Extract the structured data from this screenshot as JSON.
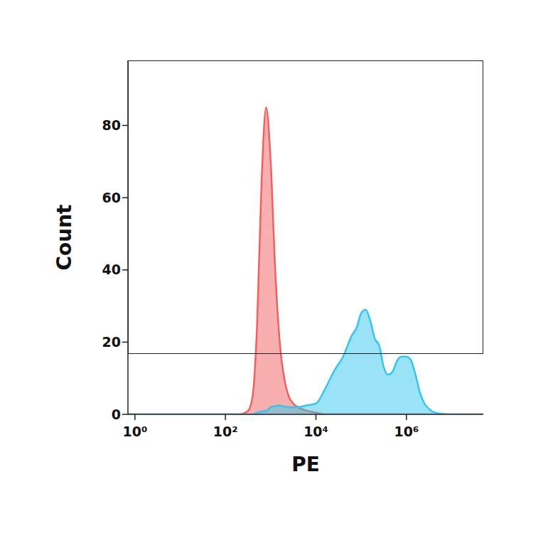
{
  "chart_data": {
    "type": "area",
    "x_label": "PE",
    "y_label": "Count",
    "log": "x",
    "grid": false,
    "tick_labels": true,
    "xlim": [
      0.7,
      50000000
    ],
    "xticks": [
      {
        "value": 1,
        "label": "10⁰"
      },
      {
        "value": 100,
        "label": "10²"
      },
      {
        "value": 10000,
        "label": "10⁴"
      },
      {
        "value": 1000000,
        "label": "10⁶"
      }
    ],
    "ylim": [
      0,
      98
    ],
    "yticks": [
      0,
      20,
      40,
      60,
      80
    ],
    "x": [
      0.7,
      1,
      10,
      100,
      200,
      316,
      398,
      501,
      631,
      794,
      1000,
      1259,
      1585,
      1995,
      2512,
      3162,
      3981,
      6310,
      10000,
      15849,
      25119,
      39811,
      63096,
      79433,
      100000,
      125893,
      158489,
      199526,
      251189,
      316228,
      398107,
      501187,
      630957,
      794328,
      1000000,
      1258925,
      1584893,
      1995262,
      2511886,
      3162278,
      5011872,
      10000000,
      31622777,
      50000000
    ],
    "series": [
      {
        "color": "#f0605f",
        "values": [
          0,
          0,
          0,
          0,
          0,
          1,
          5,
          25,
          65,
          85,
          70,
          40,
          20,
          10,
          5,
          3,
          2,
          1,
          0.5,
          0,
          0,
          0,
          0,
          0,
          0,
          0,
          0,
          0,
          0,
          0,
          0,
          0,
          0,
          0,
          0,
          0,
          0,
          0,
          0,
          0,
          0,
          0,
          0,
          0
        ]
      },
      {
        "color": "#35c5ee",
        "values": [
          0,
          0,
          0,
          0,
          0,
          0,
          0,
          0.5,
          0.8,
          1,
          2,
          2.3,
          2.5,
          2.2,
          2,
          2,
          2,
          2.5,
          3,
          7,
          12,
          16,
          22,
          24,
          28,
          29,
          26,
          21,
          19,
          13,
          11,
          12,
          15,
          16,
          16,
          15,
          11,
          6,
          3,
          1.5,
          0.3,
          0,
          0,
          0
        ]
      }
    ]
  }
}
